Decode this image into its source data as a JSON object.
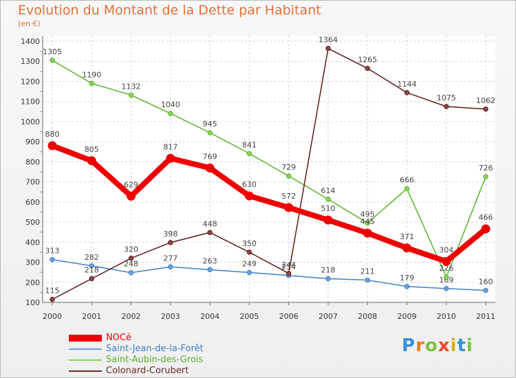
{
  "title": "Evolution du Montant de la Dette par Habitant",
  "unit": "(en €)",
  "logo": "Proxiti",
  "chart_data": {
    "type": "line",
    "x": [
      "2000",
      "2001",
      "2002",
      "2003",
      "2004",
      "2005",
      "2006",
      "2007",
      "2008",
      "2009",
      "2010",
      "2011"
    ],
    "ylim": [
      100,
      1400
    ],
    "yticks": [
      100,
      200,
      300,
      400,
      500,
      600,
      700,
      800,
      900,
      1000,
      1100,
      1200,
      1300,
      1400
    ],
    "grid": true,
    "legend_position": "bottom-left",
    "series": [
      {
        "name": "NOCé",
        "color": "#ee0000",
        "line_color": "#ee0000",
        "values": [
          880,
          805,
          629,
          817,
          769,
          630,
          572,
          510,
          445,
          371,
          304,
          466
        ]
      },
      {
        "name": "Saint-Jean-de-la-Forêt",
        "color": "#6f9fd6",
        "line_color": "#3d80c6",
        "values": [
          313,
          282,
          248,
          277,
          263,
          249,
          234,
          218,
          211,
          179,
          169,
          160
        ]
      },
      {
        "name": "Saint-Aubin-des-Grois",
        "color": "#8bd45a",
        "line_color": "#5aaf2a",
        "values": [
          1305,
          1190,
          1132,
          1040,
          945,
          841,
          729,
          614,
          495,
          666,
          226,
          726
        ]
      },
      {
        "name": "Colonard-Corubert",
        "color": "#8a4a4a",
        "line_color": "#5c1a1a",
        "values": [
          115,
          218,
          320,
          398,
          448,
          350,
          244,
          1364,
          1265,
          1144,
          1075,
          1062
        ]
      }
    ]
  }
}
